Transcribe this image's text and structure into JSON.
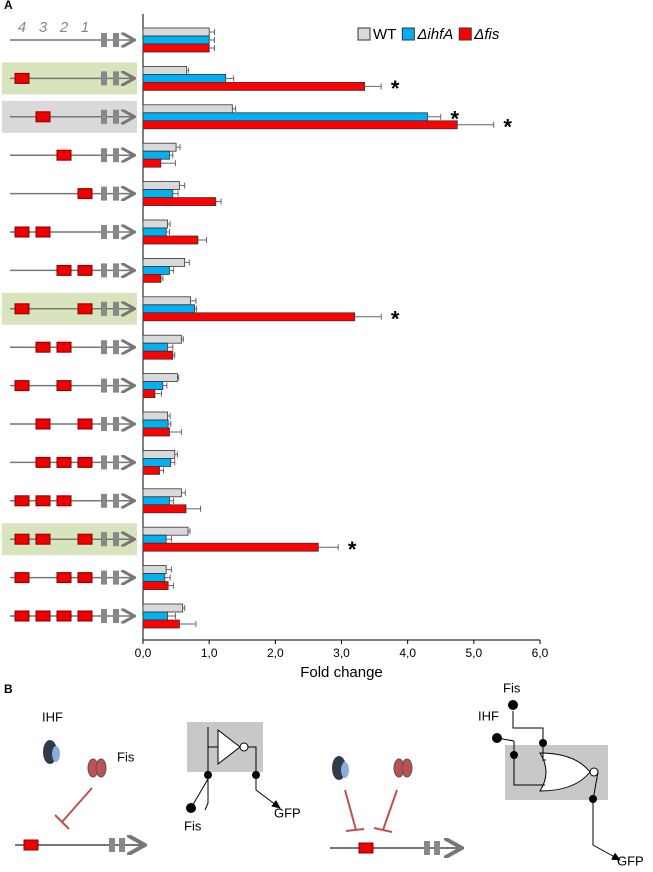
{
  "panel_label": "A",
  "chart_data": {
    "type": "bar",
    "orientation": "horizontal",
    "site_labels": [
      "4",
      "3",
      "2",
      "1"
    ],
    "categories": [
      null,
      null,
      null,
      null,
      null,
      null,
      null,
      null,
      null,
      null,
      null,
      null,
      null,
      null,
      null,
      null
    ],
    "series": [
      {
        "name": "WT",
        "color": "#d9d9d9",
        "values": [
          1.0,
          0.66,
          1.35,
          0.5,
          0.55,
          0.37,
          0.63,
          0.72,
          0.58,
          0.52,
          0.37,
          0.48,
          0.58,
          0.68,
          0.35,
          0.6
        ],
        "errors": [
          0.08,
          0.03,
          0.05,
          0.06,
          0.08,
          0.04,
          0.07,
          0.08,
          0.03,
          0.02,
          0.04,
          0.04,
          0.06,
          0.03,
          0.08,
          0.03
        ]
      },
      {
        "name": "ΔihfA",
        "color": "#00b0f0",
        "values": [
          1.0,
          1.25,
          4.3,
          0.4,
          0.45,
          0.35,
          0.4,
          0.78,
          0.37,
          0.3,
          0.38,
          0.42,
          0.4,
          0.35,
          0.33,
          0.37
        ],
        "errors": [
          0.08,
          0.12,
          0.2,
          0.05,
          0.08,
          0.05,
          0.06,
          0.03,
          0.08,
          0.06,
          0.04,
          0.06,
          0.06,
          0.08,
          0.08,
          0.12
        ]
      },
      {
        "name": "Δfis",
        "color": "#ff0000",
        "values": [
          1.0,
          3.35,
          4.75,
          0.27,
          1.1,
          0.83,
          0.27,
          3.2,
          0.45,
          0.18,
          0.4,
          0.25,
          0.65,
          2.65,
          0.38,
          0.55
        ],
        "errors": [
          0.08,
          0.25,
          0.55,
          0.22,
          0.08,
          0.13,
          0.03,
          0.4,
          0.03,
          0.1,
          0.18,
          0.06,
          0.22,
          0.3,
          0.08,
          0.25
        ]
      }
    ],
    "annotations": [
      {
        "text": "*",
        "row": 1,
        "series": 2
      },
      {
        "text": "*",
        "row": 2,
        "series": 1
      },
      {
        "text": "*",
        "row": 2,
        "series": 2
      },
      {
        "text": "*",
        "row": 7,
        "series": 2
      },
      {
        "text": "*",
        "row": 13,
        "series": 2
      }
    ],
    "x_label": "Fold change",
    "xlim": [
      0,
      6
    ],
    "xticks": [
      {
        "value": 0,
        "label": "0,0"
      },
      {
        "value": 1,
        "label": "1,0"
      },
      {
        "value": 2,
        "label": "2,0"
      },
      {
        "value": 3,
        "label": "3,0"
      },
      {
        "value": 4,
        "label": "4,0"
      },
      {
        "value": 5,
        "label": "5,0"
      },
      {
        "value": 6,
        "label": "6,0"
      }
    ],
    "legend": "top-right"
  },
  "panel_b": {
    "label": "B",
    "left_ihf": "IHF",
    "left_fis": "Fis",
    "not_input": "Fis",
    "not_output": "GFP",
    "nor_input_1": "Fis",
    "nor_input_2": "IHF",
    "nor_output": "GFP"
  }
}
